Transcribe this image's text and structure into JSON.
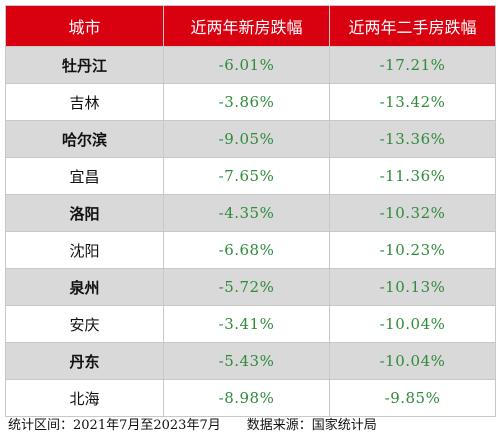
{
  "table": {
    "headers": [
      "城市",
      "近两年新房跌幅",
      "近两年二手房跌幅"
    ],
    "rows": [
      {
        "city": "牡丹江",
        "new_home": "-6.01%",
        "second_hand": "-17.21%"
      },
      {
        "city": "吉林",
        "new_home": "-3.86%",
        "second_hand": "-13.42%"
      },
      {
        "city": "哈尔滨",
        "new_home": "-9.05%",
        "second_hand": "-13.36%"
      },
      {
        "city": "宜昌",
        "new_home": "-7.65%",
        "second_hand": "-11.36%"
      },
      {
        "city": "洛阳",
        "new_home": "-4.35%",
        "second_hand": "-10.32%"
      },
      {
        "city": "沈阳",
        "new_home": "-6.68%",
        "second_hand": "-10.23%"
      },
      {
        "city": "泉州",
        "new_home": "-5.72%",
        "second_hand": "-10.13%"
      },
      {
        "city": "安庆",
        "new_home": "-3.41%",
        "second_hand": "-10.04%"
      },
      {
        "city": "丹东",
        "new_home": "-5.43%",
        "second_hand": "-10.04%"
      },
      {
        "city": "北海",
        "new_home": "-8.98%",
        "second_hand": "-9.85%"
      }
    ]
  },
  "footer": {
    "period": "统计区间：2021年7月至2023年7月",
    "source": "数据来源：国家统计局"
  },
  "colors": {
    "header_bg": "#d9000f",
    "shaded_row_bg": "#d9d9d9",
    "value_text": "#2e8b3a"
  }
}
